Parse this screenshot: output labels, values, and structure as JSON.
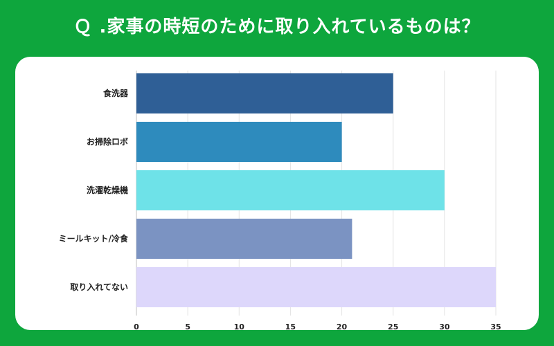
{
  "title": "Ｑ .家事の時短のために取り入れているものは？",
  "chart_data": {
    "type": "bar",
    "orientation": "horizontal",
    "title": "Ｑ .家事の時短のために取り入れているものは？",
    "categories": [
      "食洗器",
      "お掃除ロボ",
      "洗濯乾燥機",
      "ミールキット/冷食",
      "取り入れてない"
    ],
    "values": [
      25,
      20,
      30,
      21,
      35
    ],
    "colors": [
      "#2f5f96",
      "#2e8bbd",
      "#6ee2e8",
      "#7b93c2",
      "#ddd7fb"
    ],
    "xlim": [
      0,
      35
    ],
    "xticks": [
      0,
      5,
      10,
      15,
      20,
      25,
      30,
      35
    ],
    "xlabel": "",
    "ylabel": "",
    "grid": true,
    "legend": "none"
  }
}
